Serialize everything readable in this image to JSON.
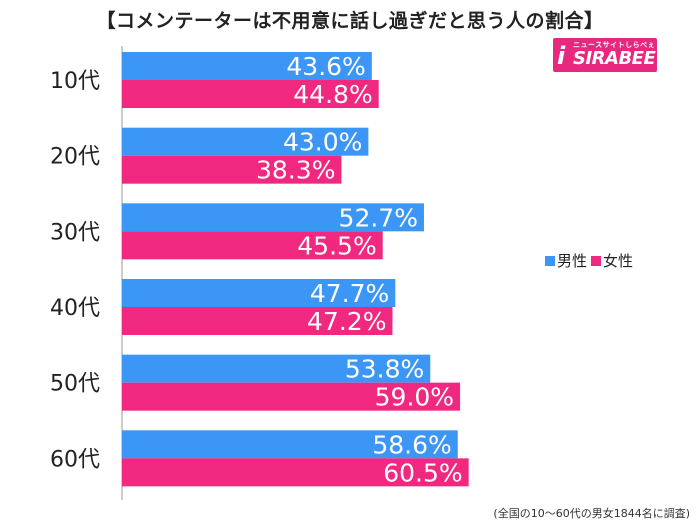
{
  "title": "【コメンテーターは不用意に話し過ぎだと思う人の割合】",
  "logo": {
    "sub": "ニュースサイトしらべぇ",
    "main": "SIRABEE",
    "mark": "i"
  },
  "footnote": "(全国の10〜60代の男女1844名に調査)",
  "colors": {
    "male": "#3c96f5",
    "female": "#f0287f",
    "axis": "#999999",
    "grid": "#e5e5e5"
  },
  "chart_data": {
    "type": "bar",
    "orientation": "horizontal",
    "categories": [
      "10代",
      "20代",
      "30代",
      "40代",
      "50代",
      "60代"
    ],
    "series": [
      {
        "name": "男性",
        "values": [
          43.6,
          43.0,
          52.7,
          47.7,
          53.8,
          58.6
        ],
        "labels": [
          "43.6%",
          "43.0%",
          "52.7%",
          "47.7%",
          "53.8%",
          "58.6%"
        ]
      },
      {
        "name": "女性",
        "values": [
          44.8,
          38.3,
          45.5,
          47.2,
          59.0,
          60.5
        ],
        "labels": [
          "44.8%",
          "38.3%",
          "45.5%",
          "47.2%",
          "59.0%",
          "60.5%"
        ]
      }
    ],
    "xlim": [
      0,
      100
    ],
    "legend_position": "right",
    "grid": false
  }
}
